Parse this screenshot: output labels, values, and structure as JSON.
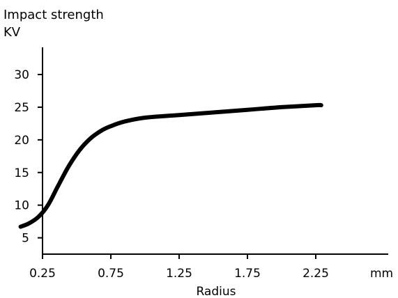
{
  "chart_data": {
    "type": "line",
    "ylabel_lines": [
      "Impact strength",
      "KV"
    ],
    "xlabel": "Radius",
    "x_unit": "mm",
    "x_ticks": [
      "0.25",
      "0.75",
      "1.25",
      "1.75",
      "2.25"
    ],
    "y_ticks": [
      "5",
      "10",
      "15",
      "20",
      "25",
      "30"
    ],
    "xlim": [
      0.0,
      2.5
    ],
    "ylim": [
      2.5,
      32
    ],
    "grid": false,
    "series": [
      {
        "x": [
          0.09,
          0.15,
          0.22,
          0.29,
          0.36,
          0.44,
          0.52,
          0.6,
          0.68,
          0.75,
          0.85,
          1.0,
          1.25,
          1.5,
          1.75,
          2.0,
          2.25,
          2.29
        ],
        "y": [
          6.7,
          7.2,
          8.2,
          10.0,
          12.8,
          15.9,
          18.4,
          20.2,
          21.4,
          22.1,
          22.8,
          23.4,
          23.8,
          24.2,
          24.6,
          25.0,
          25.3,
          25.3
        ]
      }
    ],
    "line_color": "#000000"
  }
}
